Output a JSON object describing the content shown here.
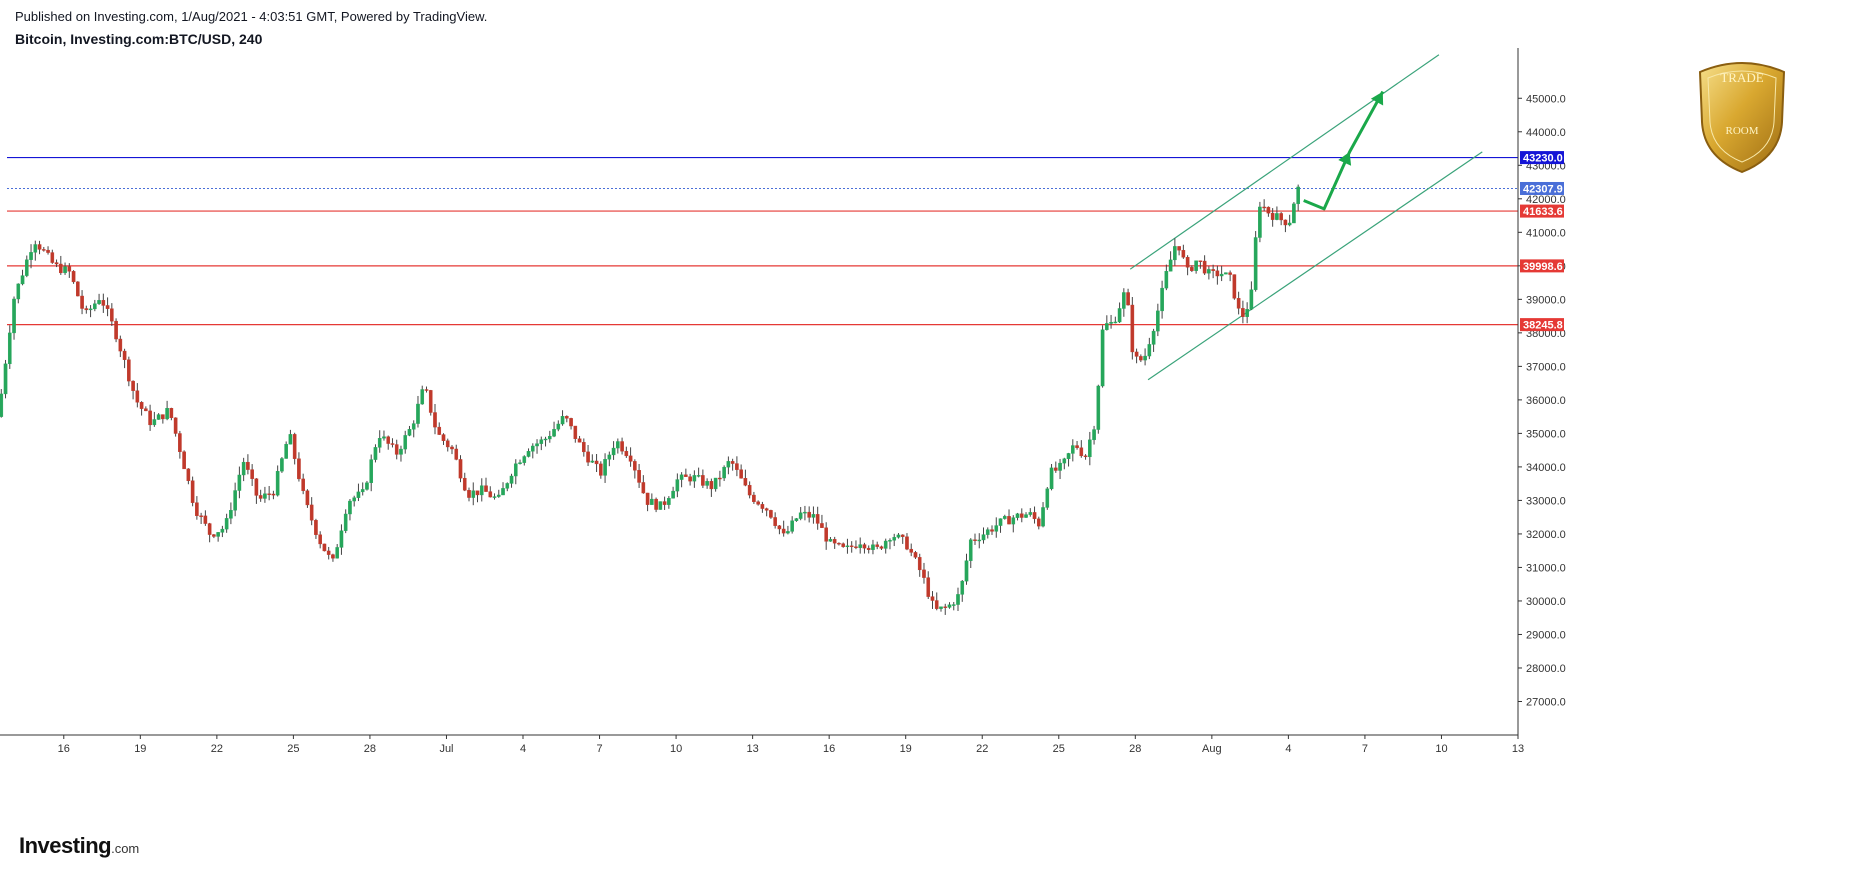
{
  "header": {
    "published_line": "Published on Investing.com, 1/Aug/2021 - 4:03:51 GMT, Powered by TradingView.",
    "symbol_line": "Bitcoin, Investing.com:BTC/USD, 240"
  },
  "branding": {
    "investing_logo": "Investing",
    "investing_logo_suffix": ".com",
    "seal_top": "TRADE",
    "seal_bottom": "ROOM"
  },
  "colors": {
    "up_candle": "#26a65b",
    "down_candle": "#c0392b",
    "resistance_line": "#e53935",
    "key_level_line": "#1515d6",
    "last_price_line": "#4a6fd8",
    "channel": "#3aa37a",
    "projection_arrow": "#1aa84a",
    "axis": "#333333"
  },
  "chart_data": {
    "type": "candlestick",
    "title": "Bitcoin, Investing.com:BTC/USD, 240",
    "ylim": [
      26000,
      46500
    ],
    "y_ticks": [
      27000,
      28000,
      29000,
      30000,
      31000,
      32000,
      33000,
      34000,
      35000,
      36000,
      37000,
      38000,
      39000,
      40000,
      41000,
      42000,
      43000,
      44000,
      45000
    ],
    "y_tick_labels": [
      "27000.0",
      "28000.0",
      "29000.0",
      "30000.0",
      "31000.0",
      "32000.0",
      "33000.0",
      "34000.0",
      "35000.0",
      "36000.0",
      "37000.0",
      "38000.0",
      "39000.0",
      "40000.0",
      "41000.0",
      "42000.0",
      "43000.0",
      "44000.0",
      "45000.0"
    ],
    "x_tick_labels": [
      "16",
      "19",
      "22",
      "25",
      "28",
      "Jul",
      "4",
      "7",
      "10",
      "13",
      "16",
      "19",
      "22",
      "25",
      "28",
      "Aug",
      "4",
      "7",
      "10",
      "13"
    ],
    "x_tick_days": [
      1,
      4,
      7,
      10,
      13,
      16,
      19,
      22,
      25,
      28,
      31,
      34,
      37,
      40,
      43,
      46,
      49,
      52,
      55,
      58
    ],
    "x_range_days": [
      -1.5,
      58
    ],
    "anchors": [
      {
        "d": -1.4,
        "p": 35500
      },
      {
        "d": -0.8,
        "p": 39000
      },
      {
        "d": 0.0,
        "p": 40800
      },
      {
        "d": 0.8,
        "p": 40000
      },
      {
        "d": 1.4,
        "p": 39800
      },
      {
        "d": 2.0,
        "p": 38500
      },
      {
        "d": 2.6,
        "p": 39100
      },
      {
        "d": 3.2,
        "p": 38000
      },
      {
        "d": 4.0,
        "p": 36000
      },
      {
        "d": 4.6,
        "p": 35300
      },
      {
        "d": 5.3,
        "p": 35700
      },
      {
        "d": 5.8,
        "p": 34300
      },
      {
        "d": 6.3,
        "p": 32800
      },
      {
        "d": 6.9,
        "p": 32000
      },
      {
        "d": 7.5,
        "p": 32200
      },
      {
        "d": 8.2,
        "p": 34200
      },
      {
        "d": 8.8,
        "p": 33000
      },
      {
        "d": 9.4,
        "p": 33300
      },
      {
        "d": 10.0,
        "p": 35000
      },
      {
        "d": 10.6,
        "p": 33000
      },
      {
        "d": 11.2,
        "p": 31800
      },
      {
        "d": 11.7,
        "p": 31100
      },
      {
        "d": 12.3,
        "p": 33000
      },
      {
        "d": 12.9,
        "p": 33200
      },
      {
        "d": 13.5,
        "p": 35000
      },
      {
        "d": 14.2,
        "p": 34400
      },
      {
        "d": 14.8,
        "p": 35200
      },
      {
        "d": 15.3,
        "p": 36400
      },
      {
        "d": 15.8,
        "p": 35000
      },
      {
        "d": 16.4,
        "p": 34500
      },
      {
        "d": 17.0,
        "p": 33200
      },
      {
        "d": 17.6,
        "p": 33300
      },
      {
        "d": 18.2,
        "p": 33000
      },
      {
        "d": 18.8,
        "p": 34000
      },
      {
        "d": 19.4,
        "p": 34600
      },
      {
        "d": 20.0,
        "p": 34800
      },
      {
        "d": 20.8,
        "p": 35500
      },
      {
        "d": 21.5,
        "p": 34500
      },
      {
        "d": 22.2,
        "p": 33800
      },
      {
        "d": 22.8,
        "p": 34800
      },
      {
        "d": 23.4,
        "p": 34300
      },
      {
        "d": 24.0,
        "p": 33000
      },
      {
        "d": 24.6,
        "p": 32800
      },
      {
        "d": 25.2,
        "p": 33600
      },
      {
        "d": 25.8,
        "p": 33700
      },
      {
        "d": 26.6,
        "p": 33400
      },
      {
        "d": 27.3,
        "p": 34200
      },
      {
        "d": 28.0,
        "p": 33200
      },
      {
        "d": 28.8,
        "p": 32700
      },
      {
        "d": 29.4,
        "p": 31900
      },
      {
        "d": 30.0,
        "p": 32600
      },
      {
        "d": 30.6,
        "p": 32500
      },
      {
        "d": 31.2,
        "p": 31700
      },
      {
        "d": 31.8,
        "p": 31500
      },
      {
        "d": 32.4,
        "p": 31800
      },
      {
        "d": 33.0,
        "p": 31500
      },
      {
        "d": 33.6,
        "p": 32000
      },
      {
        "d": 34.2,
        "p": 31700
      },
      {
        "d": 34.8,
        "p": 30800
      },
      {
        "d": 35.3,
        "p": 29700
      },
      {
        "d": 35.8,
        "p": 29800
      },
      {
        "d": 36.3,
        "p": 30200
      },
      {
        "d": 36.7,
        "p": 31800
      },
      {
        "d": 37.2,
        "p": 32000
      },
      {
        "d": 37.8,
        "p": 32300
      },
      {
        "d": 38.4,
        "p": 32500
      },
      {
        "d": 39.0,
        "p": 32600
      },
      {
        "d": 39.4,
        "p": 32300
      },
      {
        "d": 39.8,
        "p": 33800
      },
      {
        "d": 40.3,
        "p": 34000
      },
      {
        "d": 40.8,
        "p": 34700
      },
      {
        "d": 41.2,
        "p": 34300
      },
      {
        "d": 41.6,
        "p": 35400
      },
      {
        "d": 41.9,
        "p": 38200
      },
      {
        "d": 42.3,
        "p": 38300
      },
      {
        "d": 42.8,
        "p": 39300
      },
      {
        "d": 43.1,
        "p": 37200
      },
      {
        "d": 43.5,
        "p": 37200
      },
      {
        "d": 44.0,
        "p": 38500
      },
      {
        "d": 44.4,
        "p": 39800
      },
      {
        "d": 44.8,
        "p": 40800
      },
      {
        "d": 45.2,
        "p": 39800
      },
      {
        "d": 45.6,
        "p": 40200
      },
      {
        "d": 46.1,
        "p": 39700
      },
      {
        "d": 46.5,
        "p": 39800
      },
      {
        "d": 46.9,
        "p": 39600
      },
      {
        "d": 47.3,
        "p": 38400
      },
      {
        "d": 47.7,
        "p": 39000
      },
      {
        "d": 48.0,
        "p": 41900
      },
      {
        "d": 48.4,
        "p": 41600
      },
      {
        "d": 48.8,
        "p": 41400
      },
      {
        "d": 49.2,
        "p": 41300
      },
      {
        "d": 49.5,
        "p": 42300
      }
    ],
    "levels": [
      {
        "price": 43230.0,
        "label": "43230.0",
        "role": "key-resistance",
        "color": "#1515d6"
      },
      {
        "price": 42307.9,
        "label": "42307.9",
        "role": "last-price",
        "color": "#4a6fd8"
      },
      {
        "price": 41633.6,
        "label": "41633.6",
        "role": "resistance",
        "color": "#e53935"
      },
      {
        "price": 39998.6,
        "label": "39998.6",
        "role": "resistance",
        "color": "#e53935"
      },
      {
        "price": 38245.8,
        "label": "38245.8",
        "role": "support",
        "color": "#e53935"
      }
    ],
    "channel": {
      "upper": [
        {
          "d": 42.8,
          "p": 39900
        },
        {
          "d": 54.9,
          "p": 46300
        }
      ],
      "lower": [
        {
          "d": 43.5,
          "p": 36600
        },
        {
          "d": 56.6,
          "p": 43400
        }
      ]
    },
    "projection_path": [
      {
        "d": 49.6,
        "p": 41950
      },
      {
        "d": 50.4,
        "p": 41700
      },
      {
        "d": 51.4,
        "p": 43400
      },
      {
        "d": 51.4,
        "p": 43400
      },
      {
        "d": 52.7,
        "p": 45200
      }
    ]
  }
}
